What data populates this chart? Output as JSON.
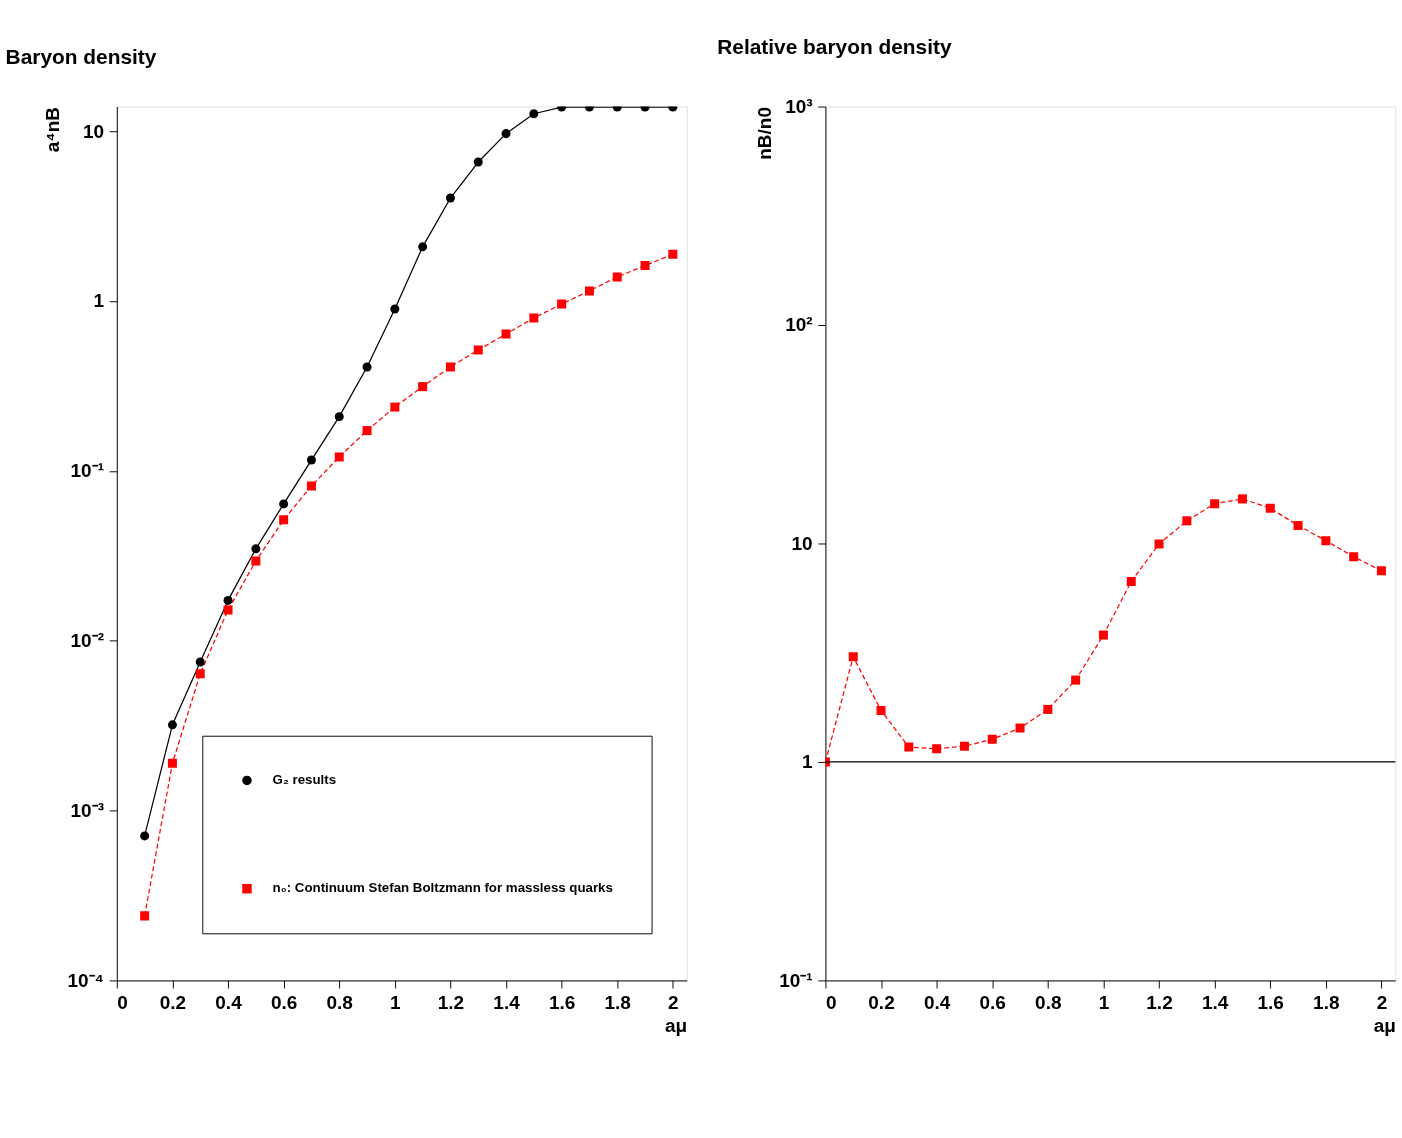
{
  "chart_data": [
    {
      "type": "line",
      "title": "Baryon density",
      "xlabel": "aμ",
      "ylabel": "a⁴nB",
      "log": "y",
      "grid": false,
      "legend": "bottom right",
      "xlim": [
        0,
        2.05
      ],
      "xticks": [
        0,
        0.2,
        0.4,
        0.6,
        0.8,
        1,
        1.2,
        1.4,
        1.6,
        1.8,
        2
      ],
      "ylim": [
        0.0001,
        14
      ],
      "yticks": [
        {
          "value": 0.0001,
          "label": "10⁻⁴"
        },
        {
          "value": 0.001,
          "label": "10⁻³"
        },
        {
          "value": 0.01,
          "label": "10⁻²"
        },
        {
          "value": 0.1,
          "label": "10⁻¹"
        },
        1,
        10
      ],
      "x": [
        0.1,
        0.2,
        0.3,
        0.4,
        0.5,
        0.6,
        0.7,
        0.8,
        0.9,
        1.0,
        1.1,
        1.2,
        1.3,
        1.4,
        1.5,
        1.6,
        1.7,
        1.8,
        1.9,
        2.0
      ],
      "series": [
        {
          "name": "G₂ results",
          "color": "#000000",
          "marker": "circle",
          "line_style": "solid",
          "values": [
            0.00071,
            0.0032,
            0.0075,
            0.0173,
            0.0348,
            0.064,
            0.116,
            0.209,
            0.41,
            0.9,
            2.09,
            4.05,
            6.6,
            9.7,
            12.7,
            13.9,
            13.9,
            13.9,
            13.9,
            13.9
          ]
        },
        {
          "name": "n₀: Continuum Stefan Boltzmann for massless quarks",
          "color": "#ff0000",
          "marker": "square",
          "line_style": "dashed",
          "values": [
            0.00024,
            0.0019,
            0.0064,
            0.0152,
            0.0295,
            0.0516,
            0.0816,
            0.121,
            0.173,
            0.238,
            0.314,
            0.41,
            0.516,
            0.641,
            0.796,
            0.962,
            1.15,
            1.39,
            1.62,
            1.89
          ]
        }
      ]
    },
    {
      "type": "line",
      "title": "Relative baryon density",
      "xlabel": "aμ",
      "ylabel": "nB/n0",
      "log": "y",
      "grid": false,
      "xlim": [
        0,
        2.05
      ],
      "xticks": [
        0,
        0.2,
        0.4,
        0.6,
        0.8,
        1,
        1.2,
        1.4,
        1.6,
        1.8,
        2
      ],
      "ylim": [
        0.1,
        1000
      ],
      "yticks": [
        {
          "value": 0.1,
          "label": "10⁻¹"
        },
        1,
        10,
        {
          "value": 100,
          "label": "10²"
        },
        {
          "value": 1000,
          "label": "10³"
        }
      ],
      "x": [
        0,
        0.1,
        0.2,
        0.3,
        0.4,
        0.5,
        0.6,
        0.7,
        0.8,
        0.9,
        1.0,
        1.1,
        1.2,
        1.3,
        1.4,
        1.5,
        1.6,
        1.7,
        1.8,
        1.9,
        2.0
      ],
      "ref_lines": [
        {
          "axis": "y",
          "value": 1,
          "color": "#000000"
        }
      ],
      "series": [
        {
          "color": "#ff0000",
          "marker": "square",
          "line_style": "dashed",
          "values": [
            1.0,
            3.03,
            1.72,
            1.17,
            1.15,
            1.18,
            1.27,
            1.43,
            1.74,
            2.37,
            3.81,
            6.7,
            9.95,
            12.7,
            15.2,
            16.0,
            14.5,
            12.1,
            10.3,
            8.7,
            7.5
          ]
        }
      ]
    }
  ]
}
